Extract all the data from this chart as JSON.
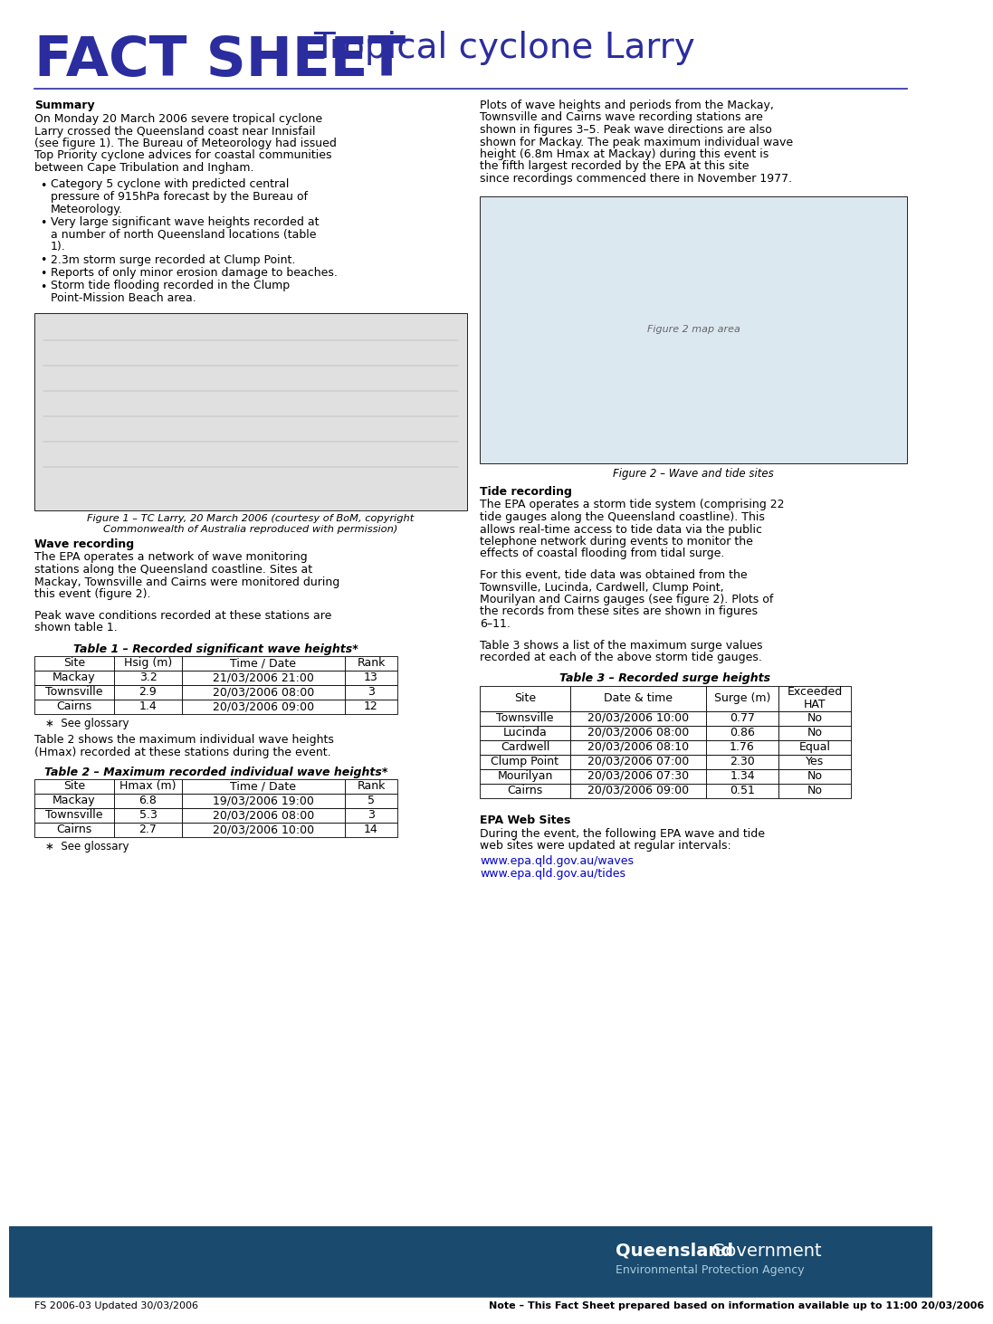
{
  "title_fact_sheet": "FACT SHEET",
  "title_subtitle": "Tropical cyclone Larry",
  "title_color": "#2B2D9E",
  "background_color": "#FFFFFF",
  "footer_bar_color": "#1a4a6e",
  "summary_heading": "Summary",
  "summary_text": "On Monday 20 March 2006 severe tropical cyclone Larry crossed the Queensland coast near Innisfail (see figure 1). The Bureau of Meteorology had issued Top Priority cyclone advices for coastal communities between Cape Tribulation and Ingham.",
  "summary_bullets": [
    "Category 5 cyclone with predicted central pressure of 915hPa forecast by the Bureau of Meteorology.",
    "Very large significant wave heights recorded at a number of north Queensland locations (table 1).",
    "2.3m storm surge recorded at Clump Point.",
    "Reports of only minor erosion damage to beaches.",
    "Storm tide flooding recorded in the Clump Point-Mission Beach area."
  ],
  "wave_recording_heading": "Wave recording",
  "wave_recording_text1": "The EPA operates a network of wave monitoring stations along the Queensland coastline. Sites at Mackay, Townsville and Cairns were monitored during this event (figure 2).",
  "wave_recording_text2": "Peak wave conditions recorded at these stations are shown table 1.",
  "table1_title": "Table 1 – Recorded significant wave heights*",
  "table1_headers": [
    "Site",
    "Hsig (m)",
    "Time / Date",
    "Rank"
  ],
  "table1_rows": [
    [
      "Mackay",
      "3.2",
      "21/03/2006 21:00",
      "13"
    ],
    [
      "Townsville",
      "2.9",
      "20/03/2006 08:00",
      "3"
    ],
    [
      "Cairns",
      "1.4",
      "20/03/2006 09:00",
      "12"
    ]
  ],
  "table1_note": "See glossary",
  "table2_text": "Table 2 shows the maximum individual wave heights (Hmax) recorded at these stations during the event.",
  "table2_title": "Table 2 – Maximum recorded individual wave heights*",
  "table2_headers": [
    "Site",
    "Hmax (m)",
    "Time / Date",
    "Rank"
  ],
  "table2_rows": [
    [
      "Mackay",
      "6.8",
      "19/03/2006 19:00",
      "5"
    ],
    [
      "Townsville",
      "5.3",
      "20/03/2006 08:00",
      "3"
    ],
    [
      "Cairns",
      "2.7",
      "20/03/2006 10:00",
      "14"
    ]
  ],
  "table2_note": "See glossary",
  "right_col_text1": "Plots of wave heights and periods from the Mackay, Townsville and Cairns wave recording stations are shown in figures 3–5. Peak wave directions are also shown for Mackay. The peak maximum individual wave height (6.8m Hmax at Mackay) during this event is the fifth largest recorded by the EPA at this site since recordings commenced there in November 1977.",
  "fig2_caption": "Figure 2 – Wave and tide sites",
  "tide_heading": "Tide recording",
  "tide_text1": "The EPA operates a storm tide system (comprising 22 tide gauges along the Queensland coastline). This allows real-time access to tide data via the public telephone network during events to monitor the effects of coastal flooding from tidal surge.",
  "tide_text2": "For this event, tide data was obtained from the Townsville, Lucinda, Cardwell, Clump Point, Mourilyan and Cairns gauges (see figure 2). Plots of the records from these sites are shown in figures 6–11.",
  "tide_text3": "Table 3 shows a list of the maximum surge values recorded at each of the above storm tide gauges.",
  "table3_title": "Table 3 – Recorded surge heights",
  "table3_headers": [
    "Site",
    "Date & time",
    "Surge (m)",
    "Exceeded\nHAT"
  ],
  "table3_rows": [
    [
      "Townsville",
      "20/03/2006 10:00",
      "0.77",
      "No"
    ],
    [
      "Lucinda",
      "20/03/2006 08:00",
      "0.86",
      "No"
    ],
    [
      "Cardwell",
      "20/03/2006 08:10",
      "1.76",
      "Equal"
    ],
    [
      "Clump Point",
      "20/03/2006 07:00",
      "2.30",
      "Yes"
    ],
    [
      "Mourilyan",
      "20/03/2006 07:30",
      "1.34",
      "No"
    ],
    [
      "Cairns",
      "20/03/2006 09:00",
      "0.51",
      "No"
    ]
  ],
  "epa_heading": "EPA Web Sites",
  "epa_text": "During the event, the following EPA wave and tide web sites were updated at regular intervals:",
  "epa_url1": "www.epa.qld.gov.au/waves",
  "epa_url2": "www.epa.qld.gov.au/tides",
  "footer_left": "FS 2006-03 Updated 30/03/2006",
  "footer_right": "Note – This Fact Sheet prepared based on information available up to 11:00 20/03/2006",
  "fig1_caption": "Figure 1 – TC Larry, 20 March 2006 (courtesy of BoM, copyright\nCommonwealth of Australia reproduced with permission)"
}
